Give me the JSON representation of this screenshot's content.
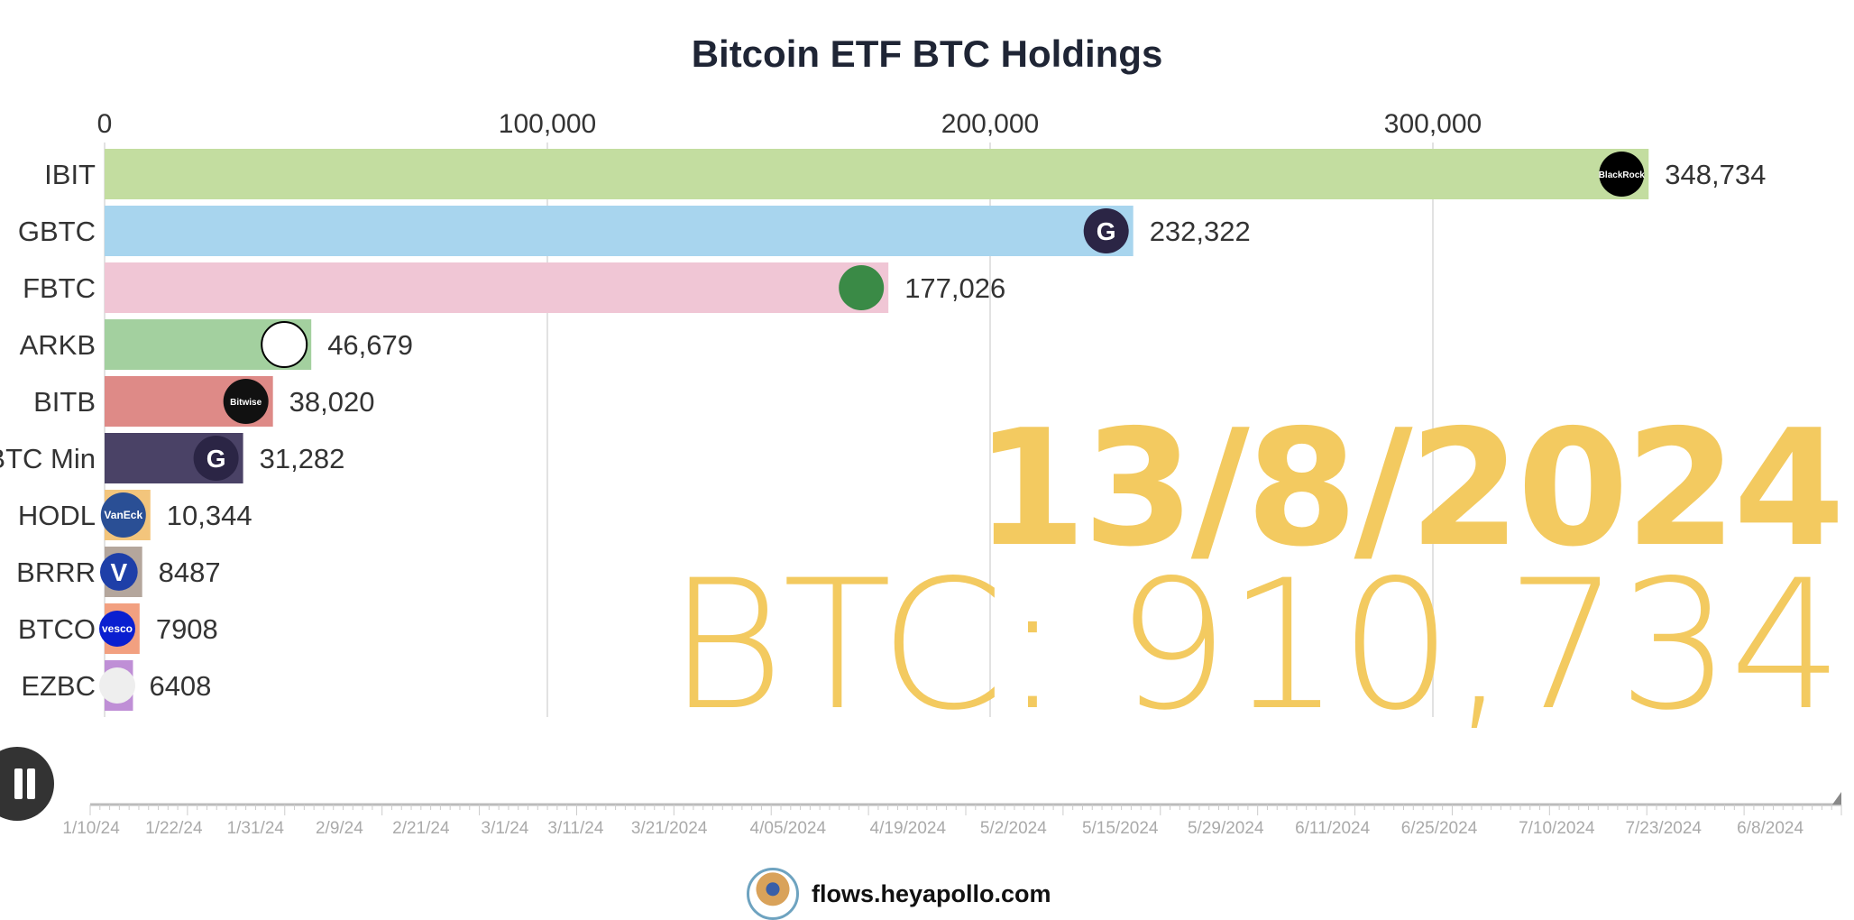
{
  "chart_data": {
    "type": "bar",
    "orientation": "horizontal",
    "title": "Bitcoin ETF BTC Holdings",
    "categories": [
      "IBIT",
      "GBTC",
      "FBTC",
      "ARKB",
      "BITB",
      "BTC Min",
      "HODL",
      "BRRR",
      "BTCO",
      "EZBC"
    ],
    "values": [
      348734,
      232322,
      177026,
      46679,
      38020,
      31282,
      10344,
      8487,
      7908,
      6408
    ],
    "value_labels": [
      "348,734",
      "232,322",
      "177,026",
      "46,679",
      "38,020",
      "31,282",
      "10,344",
      "8487",
      "7908",
      "6408"
    ],
    "logos": [
      "BlackRock",
      "G",
      "fidelity",
      "ark",
      "Bitwise",
      "G",
      "VanEck",
      "V",
      "Invesco",
      "franklin"
    ],
    "colors": [
      "#c3dda0",
      "#a8d5ee",
      "#f0c6d5",
      "#a3d09f",
      "#de8a87",
      "#4a4266",
      "#f3c57c",
      "#b4a69c",
      "#f2a080",
      "#bf8fd6"
    ],
    "xlim": [
      0,
      380000
    ],
    "xticks": [
      0,
      100000,
      200000,
      300000
    ],
    "xtick_labels": [
      "0",
      "100,000",
      "200,000",
      "300,000"
    ],
    "grid": true,
    "date": "13/8/2024",
    "total": "BTC: 910,734"
  },
  "timeline": {
    "labels": [
      "1/10/24",
      "1/22/24",
      "1/31/24",
      "2/9/24",
      "2/21/24",
      "3/1/24",
      "3/11/24",
      "3/21/2024",
      "4/05/2024",
      "4/19/2024",
      "5/2/2024",
      "5/15/2024",
      "5/29/2024",
      "6/11/2024",
      "6/25/2024",
      "7/10/2024",
      "7/23/2024",
      "6/8/2024"
    ],
    "progress": 1.0
  },
  "footer": {
    "url": "flows.heyapollo.com"
  }
}
